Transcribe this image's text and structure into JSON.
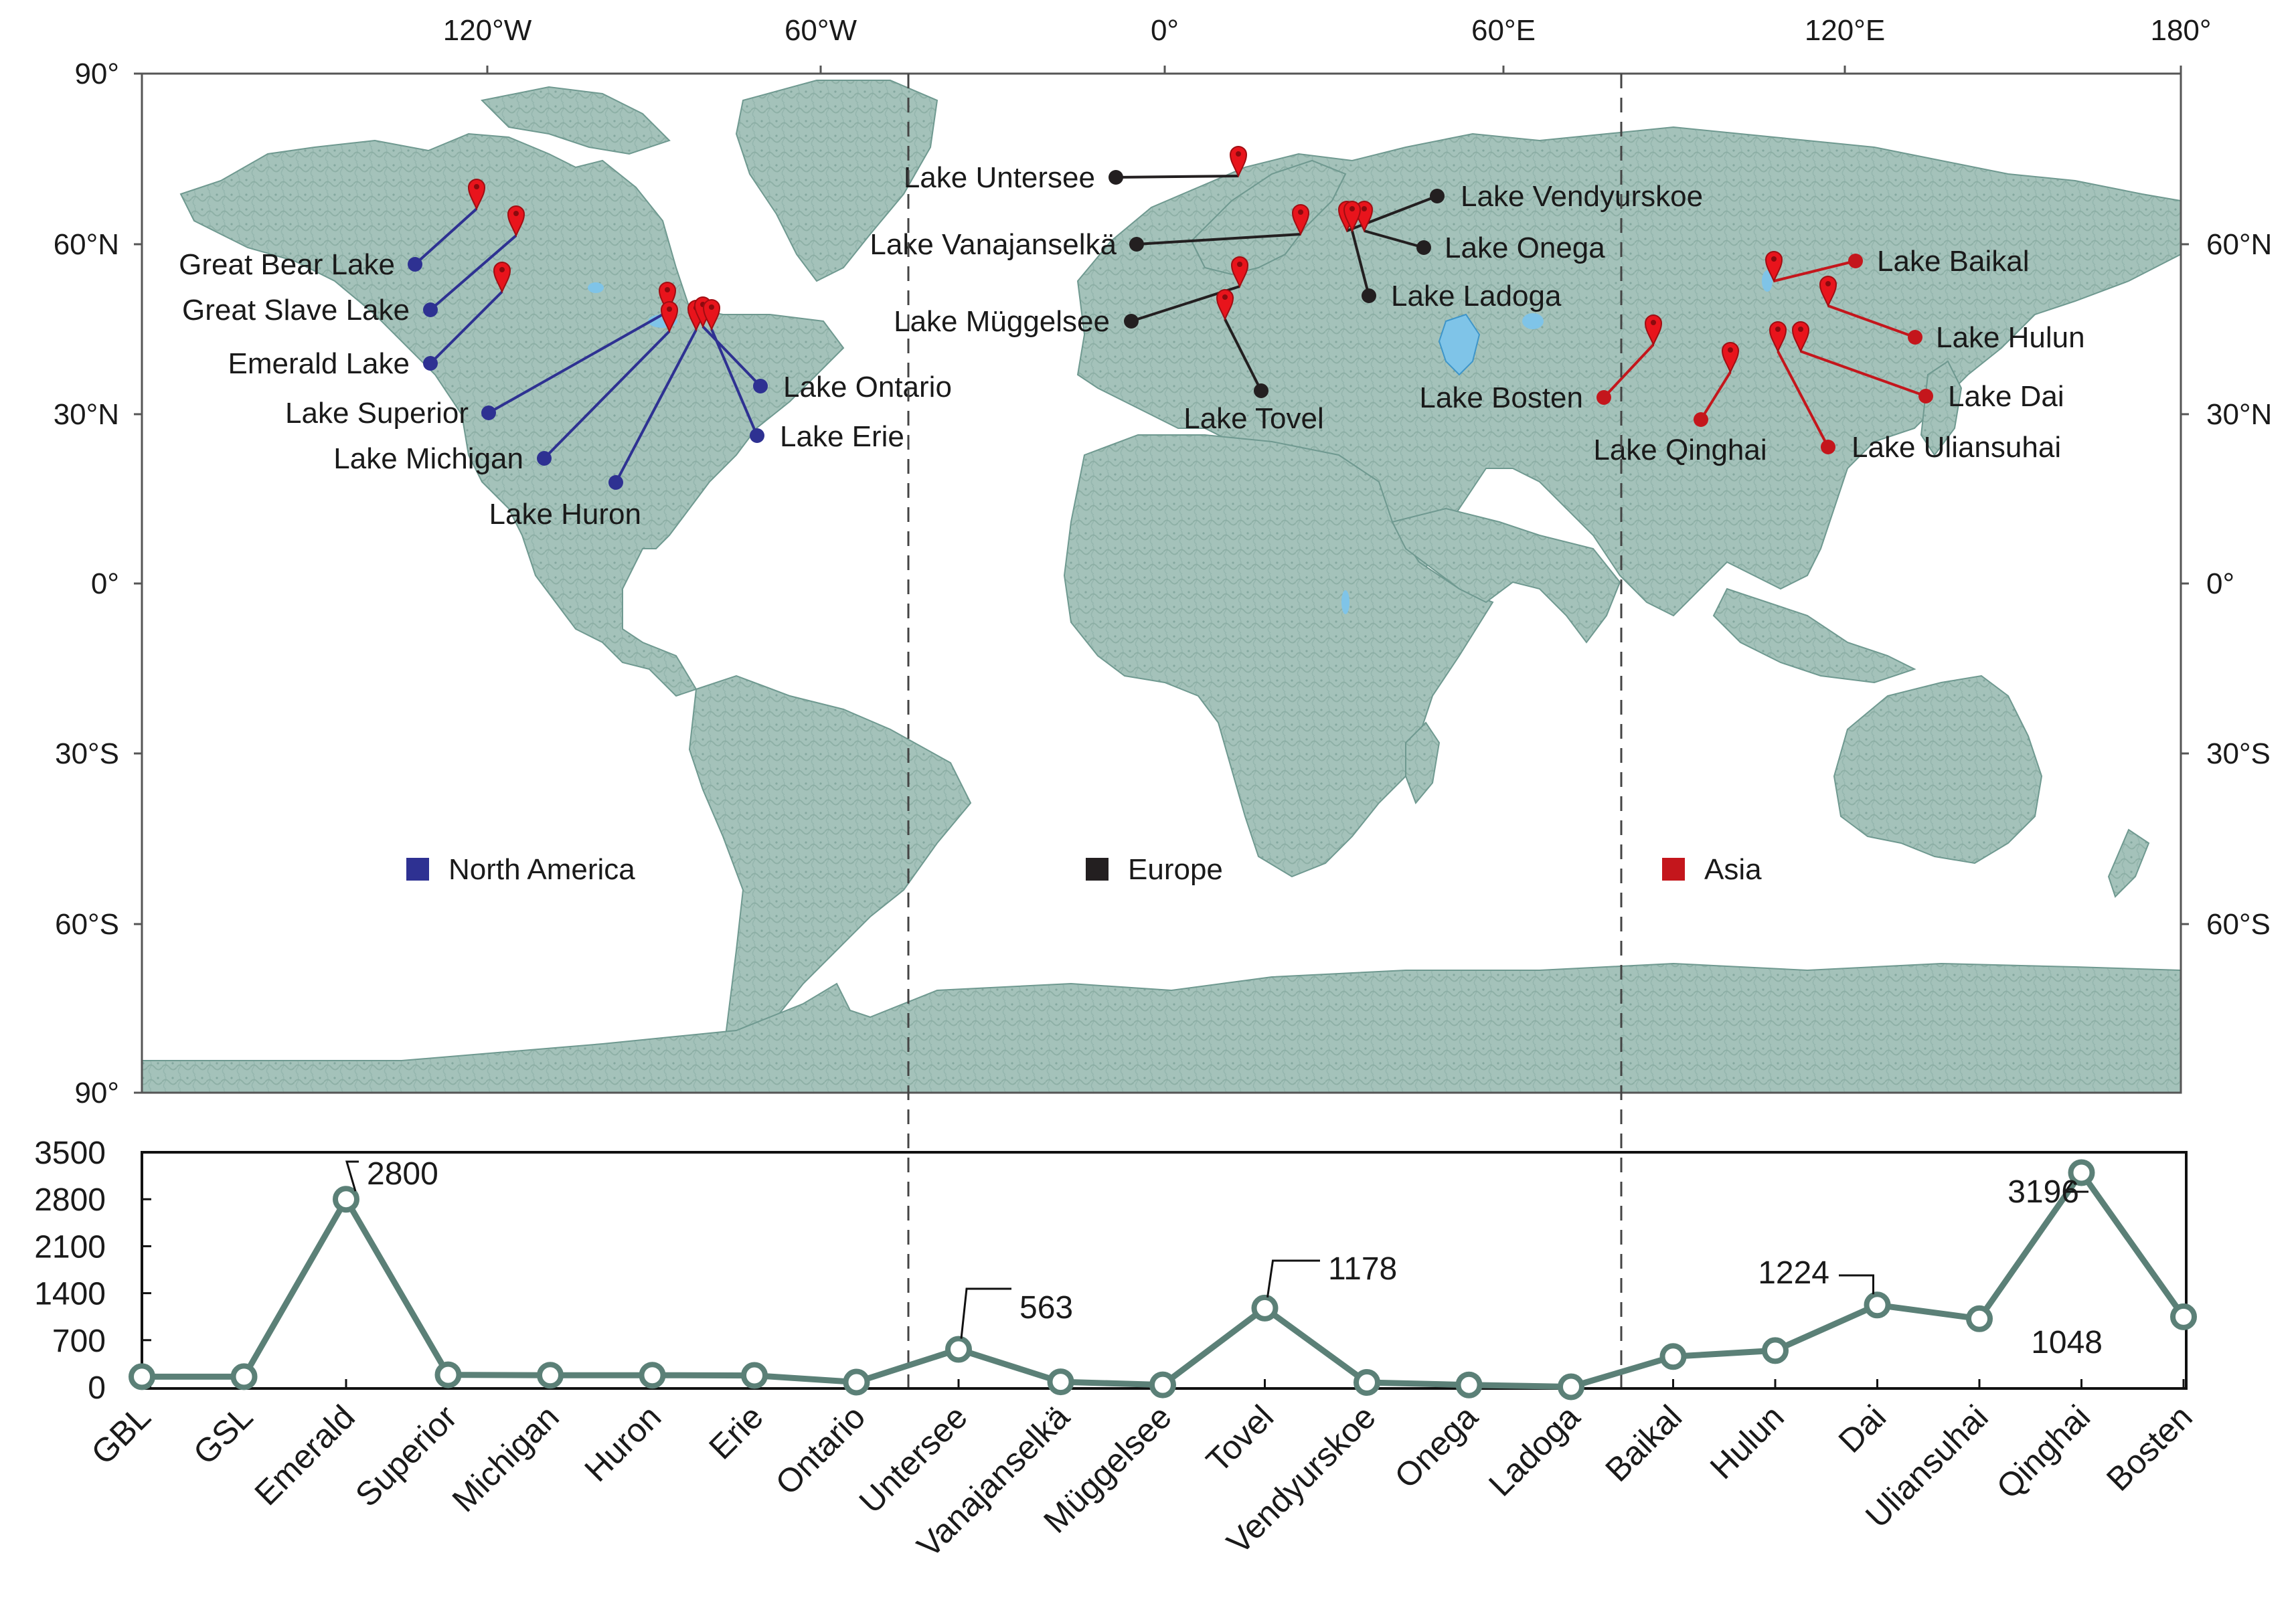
{
  "map": {
    "lon_ticks": [
      "120°W",
      "60°W",
      "0°",
      "60°E",
      "120°E",
      "180°"
    ],
    "lat_ticks": [
      "90°",
      "60°N",
      "30°N",
      "0°",
      "30°S",
      "60°S",
      "90°"
    ],
    "lat_ticks_right": [
      "60°N",
      "30°N",
      "0°",
      "30°S",
      "60°S"
    ],
    "colors": {
      "land": "#9fbeb6",
      "land_dark": "#6f9990",
      "ocean": "#ffffff",
      "lake_fill": "#7fc4e8",
      "north_america": "#2e3192",
      "europe": "#231f20",
      "asia": "#c4161c",
      "marker": "#e8141c"
    },
    "legend": [
      {
        "label": "North America",
        "color": "#2e3192"
      },
      {
        "label": "Europe",
        "color": "#231f20"
      },
      {
        "label": "Asia",
        "color": "#c4161c"
      }
    ],
    "lakes": [
      {
        "label": "Great Bear Lake",
        "region": "north_america"
      },
      {
        "label": "Great Slave Lake",
        "region": "north_america"
      },
      {
        "label": "Emerald Lake",
        "region": "north_america"
      },
      {
        "label": "Lake Superior",
        "region": "north_america"
      },
      {
        "label": "Lake Michigan",
        "region": "north_america"
      },
      {
        "label": "Lake Huron",
        "region": "north_america"
      },
      {
        "label": "Lake Ontario",
        "region": "north_america"
      },
      {
        "label": "Lake Erie",
        "region": "north_america"
      },
      {
        "label": "Lake Untersee",
        "region": "europe"
      },
      {
        "label": "Lake Vanajanselkä",
        "region": "europe"
      },
      {
        "label": "Lake Müggelsee",
        "region": "europe"
      },
      {
        "label": "Lake Tovel",
        "region": "europe"
      },
      {
        "label": "Lake Vendyurskoe",
        "region": "europe"
      },
      {
        "label": "Lake Onega",
        "region": "europe"
      },
      {
        "label": "Lake Ladoga",
        "region": "europe"
      },
      {
        "label": "Lake Baikal",
        "region": "asia"
      },
      {
        "label": "Lake Hulun",
        "region": "asia"
      },
      {
        "label": "Lake Dai",
        "region": "asia"
      },
      {
        "label": "Lake Bosten",
        "region": "asia"
      },
      {
        "label": "Lake Qinghai",
        "region": "asia"
      },
      {
        "label": "Lake Uliansuhai",
        "region": "asia"
      }
    ]
  },
  "chart_data": {
    "type": "line",
    "categories": [
      "GBL",
      "GSL",
      "Emerald",
      "Superior",
      "Michigan",
      "Huron",
      "Erie",
      "Ontario",
      "Untersee",
      "Vanajanselkä",
      "Müggelsee",
      "Tovel",
      "Vendyurskoe",
      "Onega",
      "Ladoga",
      "Baikal",
      "Hulun",
      "Dai",
      "Uliansuhai",
      "Qinghai",
      "Bosten"
    ],
    "values": [
      156,
      156,
      2800,
      183,
      177,
      177,
      174,
      75,
      563,
      79,
      34,
      1178,
      70,
      33,
      5,
      456,
      545,
      1224,
      1019,
      3196,
      1048
    ],
    "annotations": [
      {
        "index": 2,
        "text": "2800"
      },
      {
        "index": 8,
        "text": "563"
      },
      {
        "index": 11,
        "text": "1178"
      },
      {
        "index": 17,
        "text": "1224"
      },
      {
        "index": 19,
        "text": "3196"
      },
      {
        "index": 20,
        "text": "1048"
      }
    ],
    "yticks": [
      "0",
      "700",
      "1400",
      "2100",
      "2800",
      "3500"
    ],
    "ylim": [
      0,
      3500
    ],
    "grid": false,
    "color": "#5b8077"
  }
}
